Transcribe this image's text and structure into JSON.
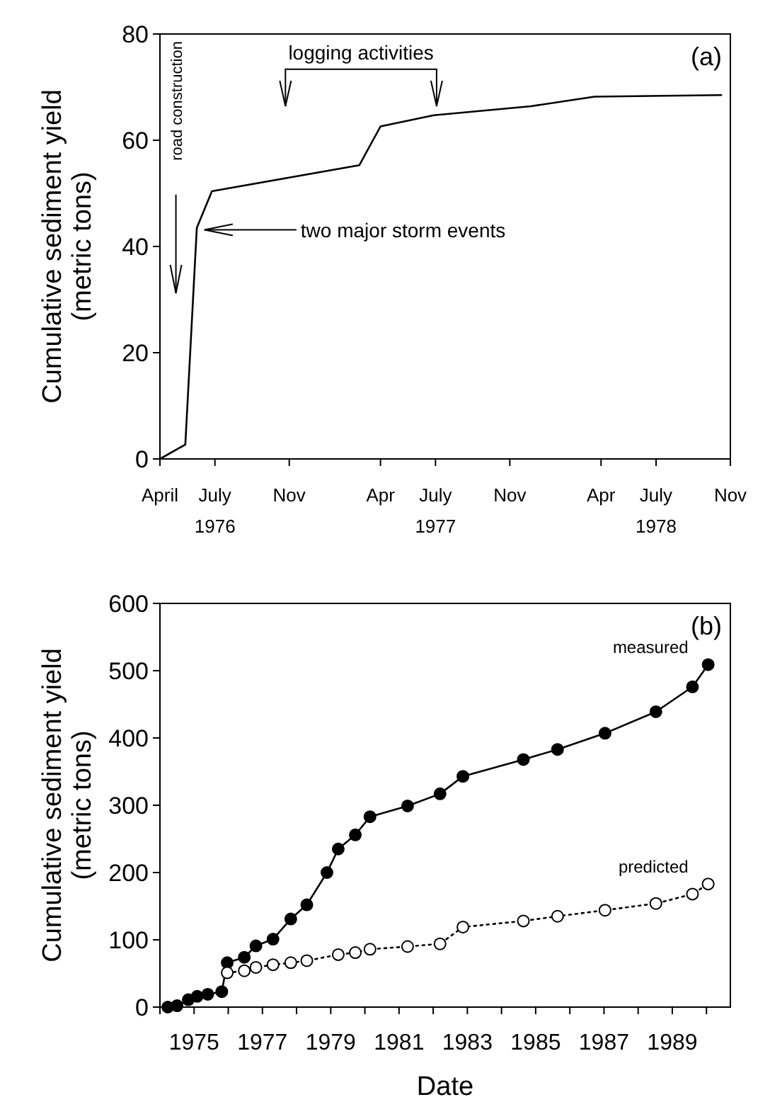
{
  "chart_data": [
    {
      "type": "line",
      "ylabel": "Cumulative sediment yield\n(metric tons)",
      "x": [
        "1976-04-01",
        "1976-05-13",
        "1976-06-01",
        "1976-06-26",
        "1977-02-25",
        "1977-04-01",
        "1977-06-28",
        "1977-12-06",
        "1978-03-21",
        "1978-10-17"
      ],
      "series": [
        {
          "color": "#000000",
          "values": [
            0,
            2.7,
            43.5,
            50.4,
            55.3,
            62.6,
            64.7,
            66.4,
            68.2,
            68.5
          ]
        }
      ],
      "xlim": [
        "1976-04-01",
        "1978-11-01"
      ],
      "xticks": [
        {
          "value": "1976-04-01",
          "label": "April"
        },
        {
          "value": "1976-07-01",
          "label": "July\n1976"
        },
        {
          "value": "1976-11-01",
          "label": "Nov"
        },
        {
          "value": "1977-04-01",
          "label": "Apr"
        },
        {
          "value": "1977-07-01",
          "label": "July\n1977"
        },
        {
          "value": "1977-11-01",
          "label": "Nov"
        },
        {
          "value": "1978-04-01",
          "label": "Apr"
        },
        {
          "value": "1978-07-01",
          "label": "July\n1978"
        },
        {
          "value": "1978-11-01",
          "label": "Nov"
        }
      ],
      "ylim": [
        0,
        80
      ],
      "yticks": [
        0,
        20,
        40,
        60,
        80
      ],
      "grid": false,
      "marker": "none",
      "line_style": "solid",
      "annotations": [
        "(a)",
        "road construction",
        "two major storm events",
        "logging activities"
      ]
    },
    {
      "type": "line",
      "ylabel": "Cumulative sediment yield\n(metric tons)",
      "xlabel": "Date",
      "series": [
        {
          "name": "measured",
          "color": "#000000",
          "line_style": "solid",
          "x": [
            1974.23,
            1974.5,
            1974.83,
            1975.09,
            1975.4,
            1975.81,
            1975.97,
            1976.47,
            1976.81,
            1977.31,
            1977.83,
            1978.3,
            1978.89,
            1979.22,
            1979.72,
            1980.15,
            1981.25,
            1982.2,
            1982.87,
            1984.64,
            1985.64,
            1987.03,
            1988.52,
            1989.59,
            1990.05
          ],
          "values": [
            0,
            2,
            11,
            16,
            19,
            23,
            66,
            74,
            91,
            101,
            131,
            152,
            200,
            235,
            256,
            283,
            299,
            317,
            343,
            368,
            383,
            407,
            439,
            476,
            509
          ]
        },
        {
          "name": "predicted",
          "color": "#000000",
          "line_style": "dotted",
          "x": [
            1975.97,
            1976.47,
            1976.81,
            1977.31,
            1977.83,
            1978.3,
            1979.22,
            1979.72,
            1980.15,
            1981.25,
            1982.2,
            1982.87,
            1984.64,
            1985.64,
            1987.03,
            1988.52,
            1989.59,
            1990.05
          ],
          "values": [
            51,
            54,
            59,
            63,
            66,
            69,
            78,
            81,
            86,
            90,
            94,
            119,
            128,
            135,
            144,
            154,
            168,
            183
          ]
        }
      ],
      "xlim": [
        1974,
        1990.7
      ],
      "xticks": [
        {
          "value": 1974,
          "label": null
        },
        1975,
        {
          "value": 1976,
          "label": null
        },
        1977,
        {
          "value": 1978,
          "label": null
        },
        1979,
        {
          "value": 1980,
          "label": null
        },
        1981,
        {
          "value": 1982,
          "label": null
        },
        1983,
        {
          "value": 1984,
          "label": null
        },
        1985,
        {
          "value": 1986,
          "label": null
        },
        1987,
        {
          "value": 1988,
          "label": null
        },
        1989,
        {
          "value": 1990,
          "label": null
        }
      ],
      "ylim": [
        0,
        600
      ],
      "yticks": [
        0,
        100,
        200,
        300,
        400,
        500,
        600
      ],
      "grid": false,
      "legend": false,
      "marker": "circle",
      "annotations": [
        "(b)"
      ]
    }
  ]
}
